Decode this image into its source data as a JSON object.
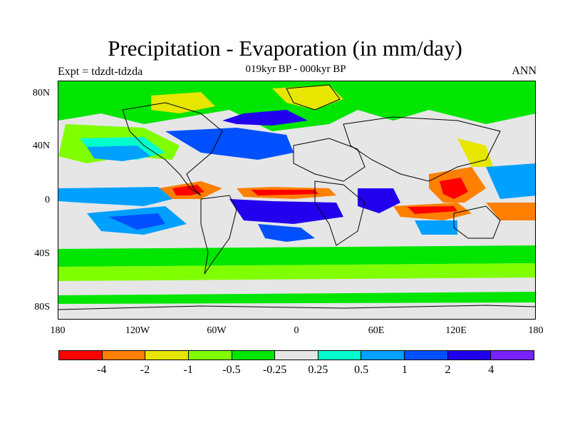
{
  "title": "Precipitation - Evaporation (in mm/day)",
  "subtitle": "019kyr BP - 000kyr BP",
  "left_label": "Expt = tdzdt-tdzda",
  "right_label": "ANN",
  "lat_labels": [
    "80N",
    "40N",
    "0",
    "40S",
    "80S"
  ],
  "lon_labels": [
    "180",
    "120W",
    "60W",
    "0",
    "60E",
    "120E",
    "180"
  ],
  "colorbar": {
    "colors": [
      "#ff0000",
      "#ff7f00",
      "#e6e600",
      "#80ff00",
      "#00e600",
      "#e6e6e6",
      "#00ffcc",
      "#00a0ff",
      "#0050ff",
      "#2200ee",
      "#7722ff"
    ],
    "labels": [
      "-4",
      "-2",
      "-1",
      "-0.5",
      "-0.25",
      "0.25",
      "0.5",
      "1",
      "2",
      "4"
    ]
  }
}
